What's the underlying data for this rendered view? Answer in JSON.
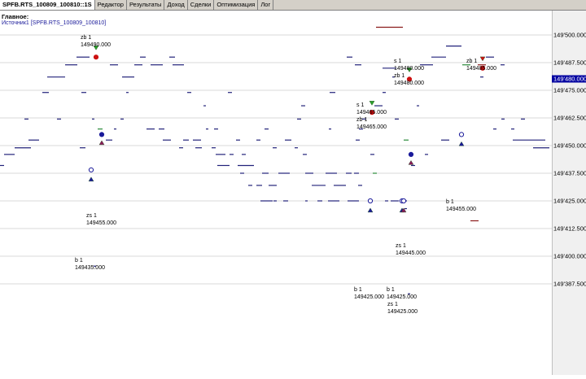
{
  "tabs": [
    {
      "label": "SPFB.RTS_100809_100810::1S",
      "active": true
    },
    {
      "label": "Редактор",
      "active": false
    },
    {
      "label": "Результаты",
      "active": false
    },
    {
      "label": "Доход",
      "active": false
    },
    {
      "label": "Сделки",
      "active": false
    },
    {
      "label": "Оптимизация",
      "active": false
    },
    {
      "label": "Лог",
      "active": false
    }
  ],
  "chart": {
    "title": "Главное:",
    "source": "Источник1 [SPFB.RTS_100809_100810]",
    "current_price": "149'480.000"
  },
  "axis": {
    "ticks": [
      "149'500.000",
      "149'487.500",
      "149'475.000",
      "149'462.500",
      "149'450.000",
      "149'437.500",
      "149'425.000",
      "149'412.500",
      "149'400.000",
      "149'387.500"
    ]
  },
  "colors": {
    "buy_marker": "#1a1a9a",
    "sell_marker": "#cc1111",
    "order_blue": "#22227a",
    "order_green": "#2a8a3a",
    "order_red": "#8b1a1a",
    "axis_bg": "#f0f0f0",
    "current_price_bg": "#0000a0"
  },
  "annotations": [
    [
      "zb 1",
      "149490.000"
    ],
    [
      "s 1",
      "149480.000"
    ],
    [
      "zb 1",
      "149480.000"
    ],
    [
      "zb 1",
      "149485.000"
    ],
    [
      "s 1",
      "149465.000"
    ],
    [
      "zb 1",
      "149465.000"
    ],
    [
      "b 1",
      "149455.000"
    ],
    [
      "zs 1",
      "149455.000"
    ],
    [
      "zs 1",
      "149445.000"
    ],
    [
      "b 1",
      "149435.000"
    ],
    [
      "b 1",
      "149425.000"
    ],
    [
      "b 1",
      "149425.000"
    ],
    [
      "zs 1",
      "149425.000"
    ]
  ]
}
